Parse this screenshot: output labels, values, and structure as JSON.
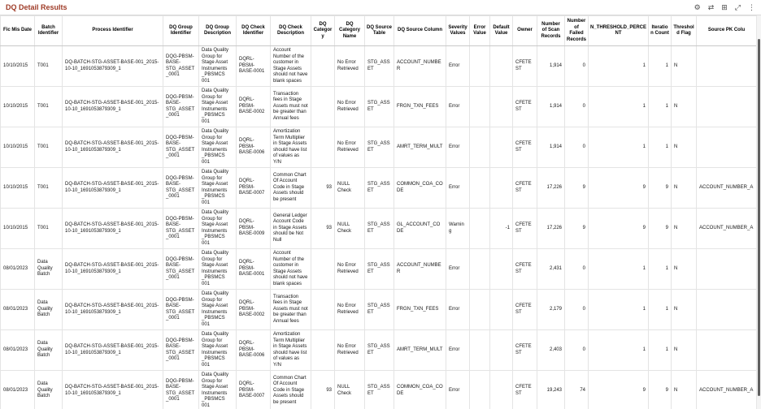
{
  "page": {
    "title": "DQ Detail Results"
  },
  "toolbar": {
    "icons": [
      {
        "name": "gear-icon",
        "glyph": "⚙"
      },
      {
        "name": "swap-columns-icon",
        "glyph": "⇄"
      },
      {
        "name": "grid-view-icon",
        "glyph": "⊞"
      },
      {
        "name": "expand-icon",
        "glyph": "⤢"
      },
      {
        "name": "kebab-menu-icon",
        "glyph": "⋮"
      }
    ]
  },
  "table": {
    "columns": [
      {
        "key": "fic_mis_date",
        "label": "Fic Mis Date"
      },
      {
        "key": "batch_identifier",
        "label": "Batch Identifier"
      },
      {
        "key": "process_identifier",
        "label": "Process Identifier"
      },
      {
        "key": "dq_group_identifier",
        "label": "DQ Group Identifier"
      },
      {
        "key": "dq_group_description",
        "label": "DQ Group Description"
      },
      {
        "key": "dq_check_identifier",
        "label": "DQ Check Identifier"
      },
      {
        "key": "dq_check_description",
        "label": "DQ Check Description"
      },
      {
        "key": "dq_category",
        "label": "DQ Category"
      },
      {
        "key": "dq_category_name",
        "label": "DQ Category Name"
      },
      {
        "key": "dq_source_table",
        "label": "DQ Source Table"
      },
      {
        "key": "dq_source_column",
        "label": "DQ Source Column"
      },
      {
        "key": "severity_values",
        "label": "Severity Values"
      },
      {
        "key": "error_value",
        "label": "Error Value"
      },
      {
        "key": "default_value",
        "label": "Default Value"
      },
      {
        "key": "owner",
        "label": "Owner"
      },
      {
        "key": "number_of_scan_records",
        "label": "Number of Scan Records"
      },
      {
        "key": "number_of_failed_records",
        "label": "Number of Failed Records"
      },
      {
        "key": "n_threshold_percent",
        "label": "N_THRESHOLD_PERCENT"
      },
      {
        "key": "iteration_count",
        "label": "Iteration Count"
      },
      {
        "key": "threshold_flag",
        "label": "Threshold Flag"
      },
      {
        "key": "source_pk_column",
        "label": "Source PK Colu"
      }
    ],
    "rows": [
      {
        "fic_mis_date": "10/10/2015",
        "batch_identifier": "T001",
        "process_identifier": "DQ-BATCH-STG-ASSET-BASE-001_2015-10-10_1691053879309_1",
        "dq_group_identifier": "DQG-PBSM-BASE-STG_ASSET_0001",
        "dq_group_description": "Data Quality Group for Stage Asset Instruments _PBSMCS 001",
        "dq_check_identifier": "DQRL-PBSM-BASE-0001",
        "dq_check_description": "Account Number of the customer in Stage Assets should not have blank spaces",
        "dq_category": "",
        "dq_category_name": "No Error Retrieved",
        "dq_source_table": "STG_ASSET",
        "dq_source_column": "ACCOUNT_NUMBER",
        "severity_values": "Error",
        "error_value": "",
        "default_value": "",
        "owner": "CFETEST",
        "number_of_scan_records": "1,914",
        "number_of_failed_records": "0",
        "n_threshold_percent": "1",
        "iteration_count": "1",
        "threshold_flag": "N",
        "source_pk_column": ""
      },
      {
        "fic_mis_date": "10/10/2015",
        "batch_identifier": "T001",
        "process_identifier": "DQ-BATCH-STG-ASSET-BASE-001_2015-10-10_1691053879309_1",
        "dq_group_identifier": "DQG-PBSM-BASE-STG_ASSET_0001",
        "dq_group_description": "Data Quality Group for Stage Asset Instruments _PBSMCS 001",
        "dq_check_identifier": "DQRL-PBSM-BASE-0002",
        "dq_check_description": "Transaction fees in Stage Assets must not be greater than Annual fees",
        "dq_category": "",
        "dq_category_name": "No Error Retrieved",
        "dq_source_table": "STG_ASSET",
        "dq_source_column": "FRGN_TXN_FEES",
        "severity_values": "Error",
        "error_value": "",
        "default_value": "",
        "owner": "CFETEST",
        "number_of_scan_records": "1,914",
        "number_of_failed_records": "0",
        "n_threshold_percent": "1",
        "iteration_count": "1",
        "threshold_flag": "N",
        "source_pk_column": ""
      },
      {
        "fic_mis_date": "10/10/2015",
        "batch_identifier": "T001",
        "process_identifier": "DQ-BATCH-STG-ASSET-BASE-001_2015-10-10_1691053879309_1",
        "dq_group_identifier": "DQG-PBSM-BASE-STG_ASSET_0001",
        "dq_group_description": "Data Quality Group for Stage Asset Instruments _PBSMCS 001",
        "dq_check_identifier": "DQRL-PBSM-BASE-0006",
        "dq_check_description": "Amortization Term Multiplier in Stage Assets should have list of values as Y/N",
        "dq_category": "",
        "dq_category_name": "No Error Retrieved",
        "dq_source_table": "STG_ASSET",
        "dq_source_column": "AMRT_TERM_MULT",
        "severity_values": "Error",
        "error_value": "",
        "default_value": "",
        "owner": "CFETEST",
        "number_of_scan_records": "1,914",
        "number_of_failed_records": "0",
        "n_threshold_percent": "1",
        "iteration_count": "1",
        "threshold_flag": "N",
        "source_pk_column": ""
      },
      {
        "fic_mis_date": "10/10/2015",
        "batch_identifier": "T001",
        "process_identifier": "DQ-BATCH-STG-ASSET-BASE-001_2015-10-10_1691053879309_1",
        "dq_group_identifier": "DQG-PBSM-BASE-STG_ASSET_0001",
        "dq_group_description": "Data Quality Group for Stage Asset Instruments _PBSMCS 001",
        "dq_check_identifier": "DQRL-PBSM-BASE-0007",
        "dq_check_description": "Common Chart Of Account Code in Stage Assets should be present",
        "dq_category": "93",
        "dq_category_name": "NULL Check",
        "dq_source_table": "STG_ASSET",
        "dq_source_column": "COMMON_COA_CODE",
        "severity_values": "Error",
        "error_value": "",
        "default_value": "",
        "owner": "CFETEST",
        "number_of_scan_records": "17,226",
        "number_of_failed_records": "9",
        "n_threshold_percent": "9",
        "iteration_count": "9",
        "threshold_flag": "N",
        "source_pk_column": "ACCOUNT_NUMBER_A"
      },
      {
        "fic_mis_date": "10/10/2015",
        "batch_identifier": "T001",
        "process_identifier": "DQ-BATCH-STG-ASSET-BASE-001_2015-10-10_1691053879309_1",
        "dq_group_identifier": "DQG-PBSM-BASE-STG_ASSET_0001",
        "dq_group_description": "Data Quality Group for Stage Asset Instruments _PBSMCS 001",
        "dq_check_identifier": "DQRL-PBSM-BASE-0009",
        "dq_check_description": "General Ledger Account Code in Stage Assets should be Not Null",
        "dq_category": "93",
        "dq_category_name": "NULL Check",
        "dq_source_table": "STG_ASSET",
        "dq_source_column": "GL_ACCOUNT_CODE",
        "severity_values": "Warning",
        "error_value": "",
        "default_value": "-1",
        "owner": "CFETEST",
        "number_of_scan_records": "17,226",
        "number_of_failed_records": "9",
        "n_threshold_percent": "9",
        "iteration_count": "9",
        "threshold_flag": "N",
        "source_pk_column": "ACCOUNT_NUMBER_A"
      },
      {
        "fic_mis_date": "08/01/2023",
        "batch_identifier": "Data Quality Batch",
        "process_identifier": "DQ-BATCH-STG-ASSET-BASE-001_2015-10-10_1691053879309_1",
        "dq_group_identifier": "DQG-PBSM-BASE-STG_ASSET_0001",
        "dq_group_description": "Data Quality Group for Stage Asset Instruments _PBSMCS 001",
        "dq_check_identifier": "DQRL-PBSM-BASE-0001",
        "dq_check_description": "Account Number of the customer in Stage Assets should not have blank spaces",
        "dq_category": "",
        "dq_category_name": "No Error Retrieved",
        "dq_source_table": "STG_ASSET",
        "dq_source_column": "ACCOUNT_NUMBER",
        "severity_values": "Error",
        "error_value": "",
        "default_value": "",
        "owner": "CFETEST",
        "number_of_scan_records": "2,431",
        "number_of_failed_records": "0",
        "n_threshold_percent": "1",
        "iteration_count": "1",
        "threshold_flag": "N",
        "source_pk_column": ""
      },
      {
        "fic_mis_date": "08/01/2023",
        "batch_identifier": "Data Quality Batch",
        "process_identifier": "DQ-BATCH-STG-ASSET-BASE-001_2015-10-10_1691053879309_1",
        "dq_group_identifier": "DQG-PBSM-BASE-STG_ASSET_0001",
        "dq_group_description": "Data Quality Group for Stage Asset Instruments _PBSMCS 001",
        "dq_check_identifier": "DQRL-PBSM-BASE-0002",
        "dq_check_description": "Transaction fees in Stage Assets must not be greater than Annual fees",
        "dq_category": "",
        "dq_category_name": "No Error Retrieved",
        "dq_source_table": "STG_ASSET",
        "dq_source_column": "FRGN_TXN_FEES",
        "severity_values": "Error",
        "error_value": "",
        "default_value": "",
        "owner": "CFETEST",
        "number_of_scan_records": "2,179",
        "number_of_failed_records": "0",
        "n_threshold_percent": "1",
        "iteration_count": "1",
        "threshold_flag": "N",
        "source_pk_column": ""
      },
      {
        "fic_mis_date": "08/01/2023",
        "batch_identifier": "Data Quality Batch",
        "process_identifier": "DQ-BATCH-STG-ASSET-BASE-001_2015-10-10_1691053879309_1",
        "dq_group_identifier": "DQG-PBSM-BASE-STG_ASSET_0001",
        "dq_group_description": "Data Quality Group for Stage Asset Instruments _PBSMCS 001",
        "dq_check_identifier": "DQRL-PBSM-BASE-0006",
        "dq_check_description": "Amortization Term Multiplier in Stage Assets should have list of values as Y/N",
        "dq_category": "",
        "dq_category_name": "No Error Retrieved",
        "dq_source_table": "STG_ASSET",
        "dq_source_column": "AMRT_TERM_MULT",
        "severity_values": "Error",
        "error_value": "",
        "default_value": "",
        "owner": "CFETEST",
        "number_of_scan_records": "2,403",
        "number_of_failed_records": "0",
        "n_threshold_percent": "1",
        "iteration_count": "1",
        "threshold_flag": "N",
        "source_pk_column": ""
      },
      {
        "fic_mis_date": "08/01/2023",
        "batch_identifier": "Data Quality Batch",
        "process_identifier": "DQ-BATCH-STG-ASSET-BASE-001_2015-10-10_1691053879309_1",
        "dq_group_identifier": "DQG-PBSM-BASE-STG_ASSET_0001",
        "dq_group_description": "Data Quality Group for Stage Asset Instruments _PBSMCS 001",
        "dq_check_identifier": "DQRL-PBSM-BASE-0007",
        "dq_check_description": "Common Chart Of Account Code in Stage Assets should be present",
        "dq_category": "93",
        "dq_category_name": "NULL Check",
        "dq_source_table": "STG_ASSET",
        "dq_source_column": "COMMON_COA_CODE",
        "severity_values": "Error",
        "error_value": "",
        "default_value": "",
        "owner": "CFETEST",
        "number_of_scan_records": "19,243",
        "number_of_failed_records": "74",
        "n_threshold_percent": "9",
        "iteration_count": "9",
        "threshold_flag": "N",
        "source_pk_column": "ACCOUNT_NUMBER_A"
      }
    ]
  }
}
